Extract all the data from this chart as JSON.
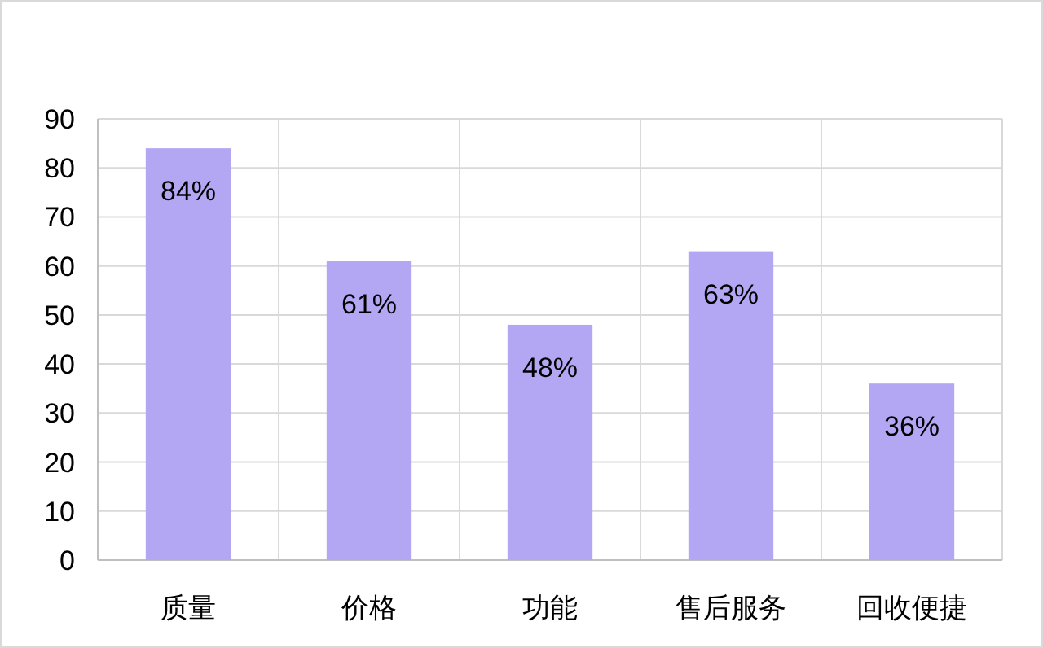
{
  "chart_data": {
    "type": "bar",
    "categories": [
      "质量",
      "价格",
      "功能",
      "售后服务",
      "回收便捷"
    ],
    "values": [
      84,
      61,
      48,
      63,
      36
    ],
    "value_labels": [
      "84%",
      "61%",
      "48%",
      "63%",
      "36%"
    ],
    "color": "#b3a6f2",
    "ylim": [
      0,
      90
    ],
    "yticks": [
      0,
      10,
      20,
      30,
      40,
      50,
      60,
      70,
      80,
      90
    ],
    "grid": true
  }
}
